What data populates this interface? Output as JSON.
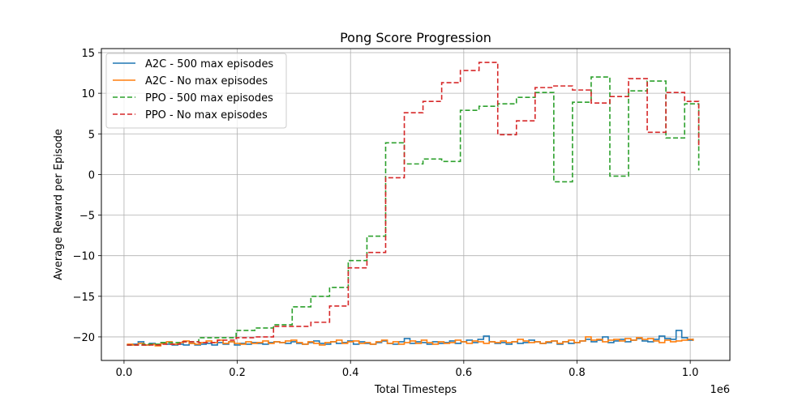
{
  "chart_data": {
    "type": "line",
    "drawstyle": "steps-post",
    "title": "Pong Score Progression",
    "xlabel": "Total Timesteps",
    "ylabel": "Average Reward per Episode",
    "x_offset_text": "1e6",
    "xlim": [
      -0.04,
      1.07
    ],
    "ylim": [
      -22.9,
      15.5
    ],
    "xticks": [
      0.0,
      0.2,
      0.4,
      0.6,
      0.8,
      1.0
    ],
    "xtick_labels": [
      "0.0",
      "0.2",
      "0.4",
      "0.6",
      "0.8",
      "1.0"
    ],
    "yticks": [
      -20,
      -15,
      -10,
      -5,
      0,
      5,
      10,
      15
    ],
    "ytick_labels": [
      "−20",
      "−15",
      "−10",
      "−5",
      "0",
      "5",
      "10",
      "15"
    ],
    "grid": true,
    "legend_position": "upper-left",
    "series": [
      {
        "name": "A2C - 500 max episodes",
        "color": "#1f77b4",
        "dash": "solid",
        "x": [
          0.005,
          0.015,
          0.025,
          0.035,
          0.045,
          0.055,
          0.065,
          0.075,
          0.085,
          0.095,
          0.105,
          0.115,
          0.125,
          0.135,
          0.145,
          0.155,
          0.165,
          0.175,
          0.185,
          0.195,
          0.205,
          0.215,
          0.225,
          0.235,
          0.245,
          0.255,
          0.265,
          0.275,
          0.285,
          0.295,
          0.305,
          0.315,
          0.325,
          0.335,
          0.345,
          0.355,
          0.365,
          0.375,
          0.385,
          0.395,
          0.405,
          0.415,
          0.425,
          0.435,
          0.445,
          0.455,
          0.465,
          0.475,
          0.485,
          0.495,
          0.505,
          0.515,
          0.525,
          0.535,
          0.545,
          0.555,
          0.565,
          0.575,
          0.585,
          0.595,
          0.605,
          0.615,
          0.625,
          0.635,
          0.645,
          0.655,
          0.665,
          0.675,
          0.685,
          0.695,
          0.705,
          0.715,
          0.725,
          0.735,
          0.745,
          0.755,
          0.765,
          0.775,
          0.785,
          0.795,
          0.805,
          0.815,
          0.825,
          0.835,
          0.845,
          0.855,
          0.865,
          0.875,
          0.885,
          0.895,
          0.905,
          0.915,
          0.925,
          0.935,
          0.945,
          0.955,
          0.965,
          0.975,
          0.985,
          0.995,
          1.005
        ],
        "y": [
          -21.0,
          -20.9,
          -20.6,
          -21.0,
          -20.8,
          -21.0,
          -20.7,
          -20.9,
          -21.0,
          -20.9,
          -21.0,
          -20.8,
          -21.0,
          -20.9,
          -20.8,
          -21.0,
          -20.7,
          -20.9,
          -20.6,
          -21.0,
          -20.8,
          -20.9,
          -20.7,
          -20.8,
          -20.9,
          -20.7,
          -20.6,
          -20.7,
          -20.8,
          -20.6,
          -20.8,
          -20.9,
          -20.7,
          -20.5,
          -20.8,
          -20.9,
          -20.6,
          -20.8,
          -20.7,
          -20.5,
          -20.9,
          -20.6,
          -20.8,
          -20.9,
          -20.7,
          -20.5,
          -20.8,
          -20.9,
          -20.6,
          -20.2,
          -20.8,
          -20.6,
          -20.7,
          -20.9,
          -20.6,
          -20.8,
          -20.7,
          -20.5,
          -20.8,
          -20.6,
          -20.4,
          -20.7,
          -20.3,
          -19.9,
          -20.6,
          -20.8,
          -20.7,
          -20.9,
          -20.6,
          -20.8,
          -20.7,
          -20.4,
          -20.6,
          -20.8,
          -20.7,
          -20.5,
          -20.9,
          -20.6,
          -20.8,
          -20.7,
          -20.5,
          -20.3,
          -20.6,
          -20.4,
          -20.0,
          -20.7,
          -20.5,
          -20.3,
          -20.6,
          -20.4,
          -20.2,
          -20.5,
          -20.6,
          -20.3,
          -19.9,
          -20.2,
          -20.3,
          -19.2,
          -20.1,
          -20.4,
          -20.2
        ]
      },
      {
        "name": "A2C - No max episodes",
        "color": "#ff7f0e",
        "dash": "solid",
        "x": [
          0.005,
          0.015,
          0.025,
          0.035,
          0.045,
          0.055,
          0.065,
          0.075,
          0.085,
          0.095,
          0.105,
          0.115,
          0.125,
          0.135,
          0.145,
          0.155,
          0.165,
          0.175,
          0.185,
          0.195,
          0.205,
          0.215,
          0.225,
          0.235,
          0.245,
          0.255,
          0.265,
          0.275,
          0.285,
          0.295,
          0.305,
          0.315,
          0.325,
          0.335,
          0.345,
          0.355,
          0.365,
          0.375,
          0.385,
          0.395,
          0.405,
          0.415,
          0.425,
          0.435,
          0.445,
          0.455,
          0.465,
          0.475,
          0.485,
          0.495,
          0.505,
          0.515,
          0.525,
          0.535,
          0.545,
          0.555,
          0.565,
          0.575,
          0.585,
          0.595,
          0.605,
          0.615,
          0.625,
          0.635,
          0.645,
          0.655,
          0.665,
          0.675,
          0.685,
          0.695,
          0.705,
          0.715,
          0.725,
          0.735,
          0.745,
          0.755,
          0.765,
          0.775,
          0.785,
          0.795,
          0.805,
          0.815,
          0.825,
          0.835,
          0.845,
          0.855,
          0.865,
          0.875,
          0.885,
          0.895,
          0.905,
          0.915,
          0.925,
          0.935,
          0.945,
          0.955,
          0.965,
          0.975,
          0.985,
          0.995,
          1.005
        ],
        "y": [
          -20.9,
          -21.0,
          -20.8,
          -21.0,
          -20.9,
          -21.1,
          -20.8,
          -20.6,
          -20.9,
          -20.7,
          -20.5,
          -20.8,
          -20.9,
          -20.7,
          -20.5,
          -20.7,
          -20.4,
          -20.8,
          -20.6,
          -20.8,
          -20.9,
          -20.6,
          -20.8,
          -20.7,
          -20.5,
          -20.8,
          -20.6,
          -20.7,
          -20.5,
          -20.4,
          -20.7,
          -20.9,
          -20.6,
          -20.8,
          -21.0,
          -20.7,
          -20.6,
          -20.4,
          -20.8,
          -20.6,
          -20.5,
          -20.8,
          -20.7,
          -20.9,
          -20.6,
          -20.4,
          -20.8,
          -20.6,
          -20.9,
          -20.7,
          -20.5,
          -20.8,
          -20.4,
          -20.7,
          -20.9,
          -20.6,
          -20.8,
          -20.7,
          -20.4,
          -20.6,
          -20.8,
          -20.5,
          -20.6,
          -20.8,
          -20.6,
          -20.7,
          -20.5,
          -20.7,
          -20.6,
          -20.3,
          -20.5,
          -20.7,
          -20.6,
          -20.8,
          -20.6,
          -20.5,
          -20.8,
          -20.6,
          -20.4,
          -20.7,
          -20.5,
          -20.0,
          -20.4,
          -20.3,
          -20.6,
          -20.4,
          -20.3,
          -20.5,
          -20.2,
          -20.4,
          -20.1,
          -20.3,
          -20.2,
          -20.5,
          -20.7,
          -20.4,
          -20.6,
          -20.5,
          -20.4,
          -20.3,
          -20.5
        ]
      },
      {
        "name": "PPO - 500 max episodes",
        "color": "#2ca02c",
        "dash": "dashed",
        "x": [
          0.005,
          0.033,
          0.066,
          0.099,
          0.132,
          0.165,
          0.198,
          0.231,
          0.264,
          0.297,
          0.33,
          0.363,
          0.396,
          0.429,
          0.462,
          0.495,
          0.528,
          0.561,
          0.594,
          0.627,
          0.66,
          0.693,
          0.726,
          0.759,
          0.792,
          0.825,
          0.858,
          0.891,
          0.924,
          0.957,
          0.99,
          1.015
        ],
        "y": [
          -21.0,
          -20.9,
          -20.7,
          -20.6,
          -20.1,
          -20.1,
          -19.2,
          -18.9,
          -18.5,
          -16.3,
          -15.0,
          -13.9,
          -10.6,
          -7.6,
          3.9,
          1.3,
          1.9,
          1.6,
          7.9,
          8.4,
          8.7,
          9.5,
          10.1,
          -0.9,
          8.9,
          12.0,
          -0.2,
          10.3,
          11.5,
          4.5,
          8.7,
          0.5
        ]
      },
      {
        "name": "PPO - No max episodes",
        "color": "#d62728",
        "dash": "dashed",
        "x": [
          0.005,
          0.033,
          0.066,
          0.099,
          0.132,
          0.165,
          0.198,
          0.231,
          0.264,
          0.297,
          0.33,
          0.363,
          0.396,
          0.429,
          0.462,
          0.495,
          0.528,
          0.561,
          0.594,
          0.627,
          0.66,
          0.693,
          0.726,
          0.759,
          0.792,
          0.825,
          0.858,
          0.891,
          0.924,
          0.957,
          0.99,
          1.015
        ],
        "y": [
          -21.0,
          -21.0,
          -20.9,
          -20.6,
          -20.7,
          -20.4,
          -20.1,
          -20.0,
          -18.7,
          -18.7,
          -18.2,
          -16.2,
          -11.5,
          -9.6,
          -0.4,
          7.6,
          9.0,
          11.3,
          12.8,
          13.8,
          4.9,
          6.6,
          10.7,
          10.9,
          10.4,
          8.8,
          9.6,
          11.8,
          5.2,
          10.1,
          9.0,
          3.5
        ]
      }
    ]
  }
}
